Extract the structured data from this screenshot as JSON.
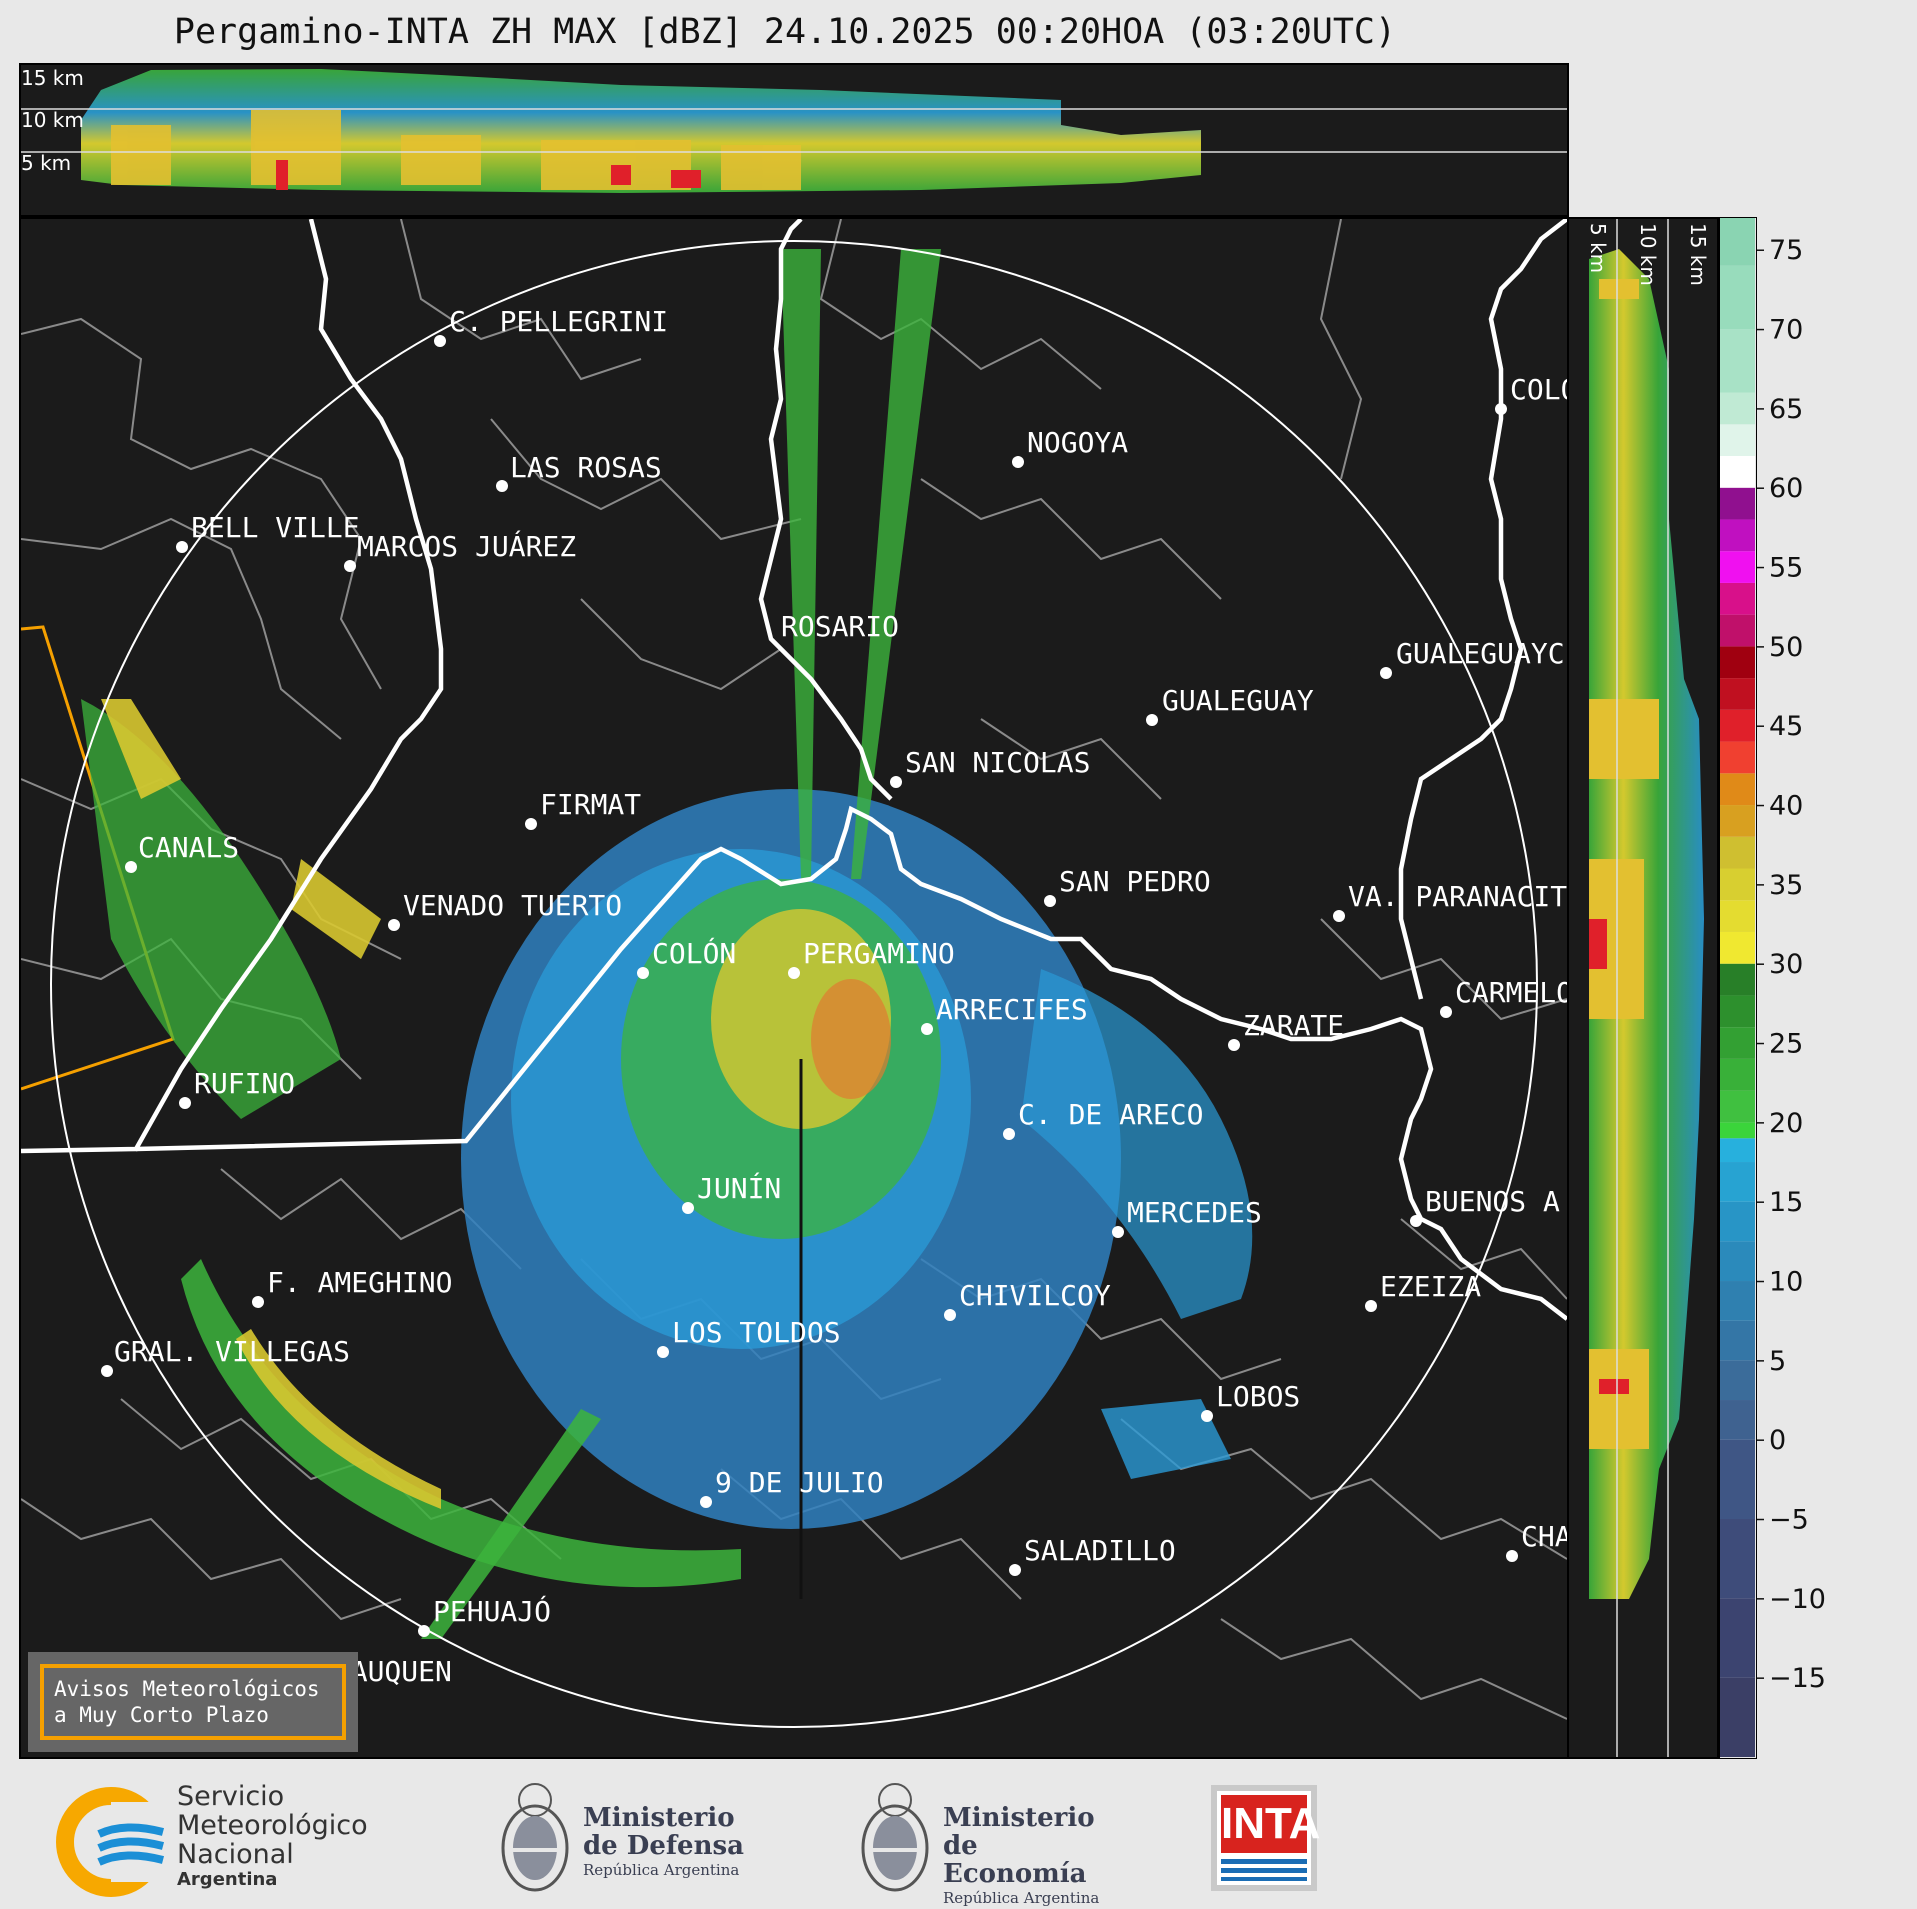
{
  "title": "Pergamino-INTA ZH MAX [dBZ] 24.10.2025 00:20HOA (03:20UTC)",
  "top_panel": {
    "alt_labels": [
      "15 km",
      "10 km",
      "5 km"
    ]
  },
  "side_panel": {
    "alt_labels": [
      "5 km",
      "10 km",
      "15 km"
    ]
  },
  "colorbar": {
    "ticks": [
      "75",
      "70",
      "65",
      "60",
      "55",
      "50",
      "45",
      "40",
      "35",
      "30",
      "25",
      "20",
      "15",
      "10",
      "5",
      "0",
      "−5",
      "−10",
      "−15"
    ]
  },
  "cities": [
    {
      "name": "C. PELLEGRINI"
    },
    {
      "name": "LAS ROSAS"
    },
    {
      "name": "NOGOYA"
    },
    {
      "name": "COLO"
    },
    {
      "name": "BELL VILLE"
    },
    {
      "name": "MARCOS JUÁREZ"
    },
    {
      "name": "ROSARIO"
    },
    {
      "name": "GUALEGUAYC"
    },
    {
      "name": "GUALEGUAY"
    },
    {
      "name": "SAN NICOLAS"
    },
    {
      "name": "FIRMAT"
    },
    {
      "name": "CANALS"
    },
    {
      "name": "SAN PEDRO"
    },
    {
      "name": "VENADO TUERTO"
    },
    {
      "name": "VA. PARANACIT"
    },
    {
      "name": "COLÓN"
    },
    {
      "name": "PERGAMINO"
    },
    {
      "name": "CARMELO"
    },
    {
      "name": "ARRECIFES"
    },
    {
      "name": "ZARATE"
    },
    {
      "name": "RUFINO"
    },
    {
      "name": "C. DE ARECO"
    },
    {
      "name": "JUNÍN"
    },
    {
      "name": "MERCEDES"
    },
    {
      "name": "BUENOS A"
    },
    {
      "name": "F. AMEGHINO"
    },
    {
      "name": "EZEIZA"
    },
    {
      "name": "CHIVILCOY"
    },
    {
      "name": "LOS TOLDOS"
    },
    {
      "name": "GRAL. VILLEGAS"
    },
    {
      "name": "LOBOS"
    },
    {
      "name": "9 DE JULIO"
    },
    {
      "name": "SALADILLO"
    },
    {
      "name": "CHA"
    },
    {
      "name": "PEHUAJÓ"
    },
    {
      "name": "TRENQUE LAUQUEN"
    }
  ],
  "warning_box": {
    "line1": "Avisos Meteorológicos",
    "line2": "a Muy Corto Plazo"
  },
  "logos": {
    "smn": {
      "line1": "Servicio",
      "line2": "Meteorológico",
      "line3": "Nacional",
      "line4": "Argentina"
    },
    "defensa": {
      "line1": "Ministerio",
      "line2": "de Defensa",
      "line3": "República Argentina"
    },
    "economia": {
      "line1": "Ministerio",
      "line2": "de Economía",
      "line3": "República Argentina"
    },
    "inta": {
      "text": "INTA"
    }
  },
  "colors": {
    "background": "#1b1b1b",
    "warning_border": "#f5a000",
    "inta_red": "#d8231e",
    "inta_blue": "#1a6db5",
    "smn_orange": "#f7a800",
    "smn_blue": "#1b8fd6"
  }
}
